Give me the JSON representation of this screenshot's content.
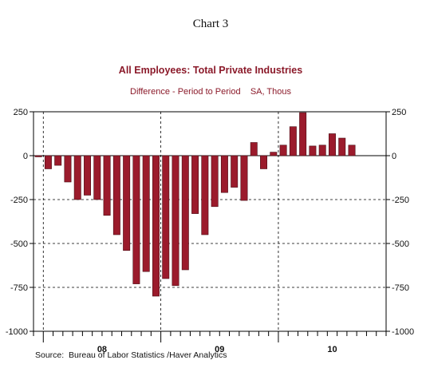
{
  "header": {
    "title": "Chart 3"
  },
  "chart_data": {
    "type": "bar",
    "title": "All Employees: Total Private Industries",
    "subtitle": "Difference - Period to Period    SA, Thous",
    "ylim": [
      -1000,
      250
    ],
    "yticks": [
      "250",
      "0",
      "-250",
      "-500",
      "-750",
      "-1000"
    ],
    "ytick_values": [
      250,
      0,
      -250,
      -500,
      -750,
      -1000
    ],
    "x_year_labels": [
      "08",
      "09",
      "10"
    ],
    "grid": true,
    "source": "Source:  Bureau of Labor Statistics /Haver Analytics",
    "bar_color": "#9b1b2c",
    "categories": [
      "2007-12",
      "2008-01",
      "2008-02",
      "2008-03",
      "2008-04",
      "2008-05",
      "2008-06",
      "2008-07",
      "2008-08",
      "2008-09",
      "2008-10",
      "2008-11",
      "2008-12",
      "2009-01",
      "2009-02",
      "2009-03",
      "2009-04",
      "2009-05",
      "2009-06",
      "2009-07",
      "2009-08",
      "2009-09",
      "2009-10",
      "2009-11",
      "2009-12",
      "2010-01",
      "2010-02",
      "2010-03",
      "2010-04",
      "2010-05",
      "2010-06",
      "2010-07",
      "2010-08",
      "2010-09",
      "2010-10",
      "2010-11"
    ],
    "values": [
      -5,
      -75,
      -55,
      -150,
      -250,
      -225,
      -250,
      -340,
      -450,
      -540,
      -730,
      -660,
      -800,
      -700,
      -740,
      -650,
      -330,
      -450,
      -290,
      -210,
      -180,
      -255,
      75,
      -75,
      20,
      60,
      165,
      245,
      55,
      60,
      125,
      100,
      60,
      null,
      null,
      null
    ]
  }
}
